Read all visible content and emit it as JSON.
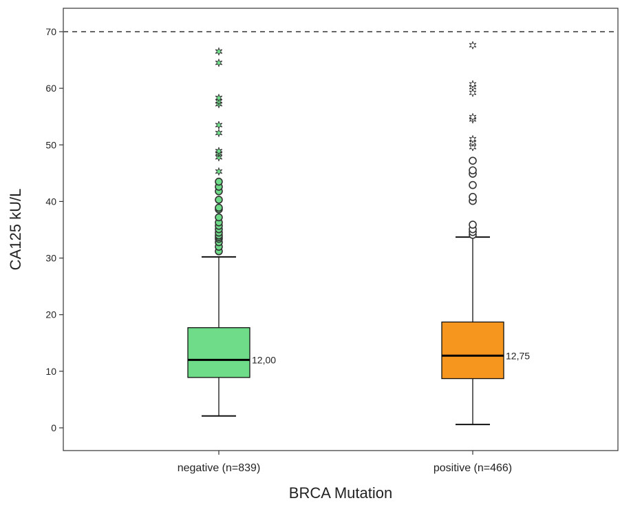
{
  "chart_data": {
    "type": "boxplot",
    "title": "",
    "xlabel": "BRCA Mutation",
    "ylabel": "CA125 kU/L",
    "ylim": [
      -4,
      74
    ],
    "yticks": [
      0,
      10,
      20,
      30,
      40,
      50,
      60,
      70
    ],
    "grid": false,
    "legend": "none",
    "reference_line": {
      "y": 70,
      "style": "dashed"
    },
    "categories": [
      "negative (n=839)",
      "positive (n=466)"
    ],
    "series": [
      {
        "category": "negative (n=839)",
        "color": "#6fdc8a",
        "whisker_low": 2.1,
        "q1": 8.9,
        "median": 12.0,
        "q3": 17.7,
        "whisker_high": 30.2,
        "median_label": "12,00",
        "outliers": [
          31.2,
          32.0,
          32.8,
          33.4,
          33.7,
          34.0,
          34.5,
          35.1,
          35.7,
          36.3,
          37.2,
          38.6,
          38.9,
          40.3,
          41.8,
          42.6,
          43.5
        ],
        "extremes": [
          45.3,
          47.8,
          48.5,
          48.9,
          52.1,
          53.5,
          57.2,
          57.7,
          58.3,
          64.5,
          66.5
        ]
      },
      {
        "category": "positive (n=466)",
        "color": "#f7961e",
        "whisker_low": 0.6,
        "q1": 8.7,
        "median": 12.75,
        "q3": 18.7,
        "whisker_high": 33.7,
        "median_label": "12,75",
        "outliers": [
          34.1,
          34.6,
          35.1,
          35.9,
          40.1,
          40.8,
          42.9,
          44.9,
          45.5,
          47.2
        ],
        "extremes": [
          49.6,
          50.4,
          51.0,
          54.5,
          54.9,
          59.2,
          60.2,
          60.7,
          67.6
        ]
      }
    ]
  }
}
